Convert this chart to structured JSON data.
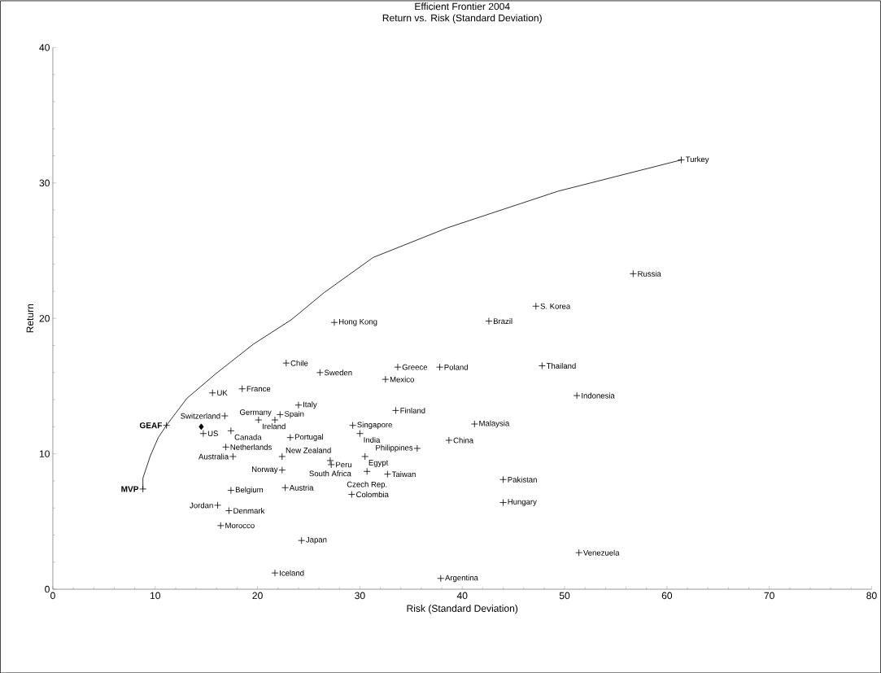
{
  "chart_data": {
    "type": "scatter",
    "title": "Efficient Frontier 2004",
    "subtitle": "Return vs. Risk (Standard Deviation)",
    "xlabel": "Risk (Standard Deviation)",
    "ylabel": "Return",
    "xlim": [
      0,
      80
    ],
    "xticks": [
      0,
      10,
      20,
      30,
      40,
      50,
      60,
      70,
      80
    ],
    "ylim": [
      0,
      40
    ],
    "yticks": [
      0,
      10,
      20,
      30,
      40
    ],
    "series": [
      {
        "type": "line",
        "color": "#000000",
        "marker": "none",
        "line_style": "solid",
        "x": [
          8.8,
          8.8,
          9.5,
          10.3,
          11.1,
          13.1,
          15.9,
          19.6,
          23.3,
          26.5,
          31.3,
          38.6,
          49.4,
          61.4
        ],
        "values": [
          7.4,
          8.2,
          9.8,
          11.2,
          12.1,
          14.1,
          15.9,
          18.1,
          19.9,
          21.9,
          24.5,
          26.7,
          29.4,
          31.7
        ]
      },
      {
        "type": "scatter",
        "color": "#000000",
        "marker": "cross",
        "x": [
          61.4,
          56.7,
          47.2,
          42.6,
          27.5,
          47.8,
          22.8,
          26.1,
          33.7,
          37.8,
          32.5,
          51.2,
          15.6,
          18.5,
          24.0,
          33.5,
          16.8,
          22.2,
          20.1,
          21.7,
          29.3,
          30.0,
          41.2,
          11.1,
          14.7,
          17.4,
          23.2,
          38.7,
          35.6,
          16.9,
          22.4,
          17.6,
          30.5,
          27.1,
          27.2,
          22.4,
          30.7,
          32.7,
          44.0,
          44.0,
          8.8,
          17.4,
          22.7,
          29.2,
          16.1,
          17.2,
          16.4,
          24.3,
          51.4,
          21.7,
          37.9
        ],
        "values": [
          31.7,
          23.3,
          20.9,
          19.8,
          19.7,
          16.5,
          16.7,
          16.0,
          16.4,
          16.4,
          15.5,
          14.3,
          14.5,
          14.8,
          13.6,
          13.2,
          12.8,
          12.9,
          12.5,
          12.5,
          12.1,
          11.5,
          12.2,
          12.1,
          11.5,
          11.7,
          11.2,
          11.0,
          10.4,
          10.5,
          9.8,
          9.8,
          9.8,
          9.5,
          9.2,
          8.8,
          8.7,
          8.5,
          8.1,
          6.4,
          7.4,
          7.3,
          7.5,
          7.0,
          6.2,
          5.8,
          4.7,
          3.6,
          2.7,
          1.2,
          0.8
        ]
      },
      {
        "type": "scatter",
        "color": "#000000",
        "marker": "diamond",
        "x": [
          14.5
        ],
        "values": [
          12.0
        ]
      }
    ],
    "annotations": [
      {
        "text": "Turkey",
        "x": 61.4,
        "y": 31.7
      },
      {
        "text": "Russia",
        "x": 56.7,
        "y": 23.3
      },
      {
        "text": "S. Korea",
        "x": 47.2,
        "y": 20.9
      },
      {
        "text": "Brazil",
        "x": 42.6,
        "y": 19.8
      },
      {
        "text": "Hong Kong",
        "x": 27.5,
        "y": 19.7
      },
      {
        "text": "Thailand",
        "x": 47.8,
        "y": 16.5
      },
      {
        "text": "Chile",
        "x": 22.8,
        "y": 16.7
      },
      {
        "text": "Sweden",
        "x": 26.1,
        "y": 16.0
      },
      {
        "text": "Greece",
        "x": 33.7,
        "y": 16.4
      },
      {
        "text": "Poland",
        "x": 37.8,
        "y": 16.4
      },
      {
        "text": "Mexico",
        "x": 32.5,
        "y": 15.5
      },
      {
        "text": "Indonesia",
        "x": 51.2,
        "y": 14.3
      },
      {
        "text": "UK",
        "x": 15.6,
        "y": 14.5
      },
      {
        "text": "France",
        "x": 18.5,
        "y": 14.8
      },
      {
        "text": "Italy",
        "x": 24.0,
        "y": 13.6
      },
      {
        "text": "Finland",
        "x": 33.5,
        "y": 13.2
      },
      {
        "text": "Switzerland",
        "x": 16.8,
        "y": 12.8
      },
      {
        "text": "Spain",
        "x": 22.2,
        "y": 12.9
      },
      {
        "text": "Ireland",
        "x": 20.1,
        "y": 12.5
      },
      {
        "text": "Germany",
        "x": 21.7,
        "y": 12.5
      },
      {
        "text": "Singapore",
        "x": 29.3,
        "y": 12.1
      },
      {
        "text": "India",
        "x": 30.0,
        "y": 11.5
      },
      {
        "text": "Malaysia",
        "x": 41.2,
        "y": 12.2
      },
      {
        "text": "GEAF",
        "x": 11.1,
        "y": 12.1
      },
      {
        "text": "US",
        "x": 14.7,
        "y": 11.5
      },
      {
        "text": "Canada",
        "x": 17.4,
        "y": 11.7
      },
      {
        "text": "Portugal",
        "x": 23.2,
        "y": 11.2
      },
      {
        "text": "China",
        "x": 38.7,
        "y": 11.0
      },
      {
        "text": "Philippines",
        "x": 35.6,
        "y": 10.4
      },
      {
        "text": "Netherlands",
        "x": 16.9,
        "y": 10.5
      },
      {
        "text": "New Zealand",
        "x": 22.4,
        "y": 9.8
      },
      {
        "text": "Australia",
        "x": 17.6,
        "y": 9.8
      },
      {
        "text": "Egypt",
        "x": 30.5,
        "y": 9.8
      },
      {
        "text": "South Africa",
        "x": 27.1,
        "y": 9.5
      },
      {
        "text": "Peru",
        "x": 27.2,
        "y": 9.2
      },
      {
        "text": "Norway",
        "x": 22.4,
        "y": 8.8
      },
      {
        "text": "Czech Rep.",
        "x": 30.7,
        "y": 8.7
      },
      {
        "text": "Taiwan",
        "x": 32.7,
        "y": 8.5
      },
      {
        "text": "Pakistan",
        "x": 44.0,
        "y": 8.1
      },
      {
        "text": "Hungary",
        "x": 44.0,
        "y": 6.4
      },
      {
        "text": "MVP",
        "x": 8.8,
        "y": 7.4
      },
      {
        "text": "Belgium",
        "x": 17.4,
        "y": 7.3
      },
      {
        "text": "Austria",
        "x": 22.7,
        "y": 7.5
      },
      {
        "text": "Colombia",
        "x": 29.2,
        "y": 7.0
      },
      {
        "text": "Jordan",
        "x": 16.1,
        "y": 6.2
      },
      {
        "text": "Denmark",
        "x": 17.2,
        "y": 5.8
      },
      {
        "text": "Morocco",
        "x": 16.4,
        "y": 4.7
      },
      {
        "text": "Japan",
        "x": 24.3,
        "y": 3.6
      },
      {
        "text": "Venezuela",
        "x": 51.4,
        "y": 2.7
      },
      {
        "text": "Iceland",
        "x": 21.7,
        "y": 1.2
      },
      {
        "text": "Argentina",
        "x": 37.9,
        "y": 0.8
      }
    ]
  }
}
